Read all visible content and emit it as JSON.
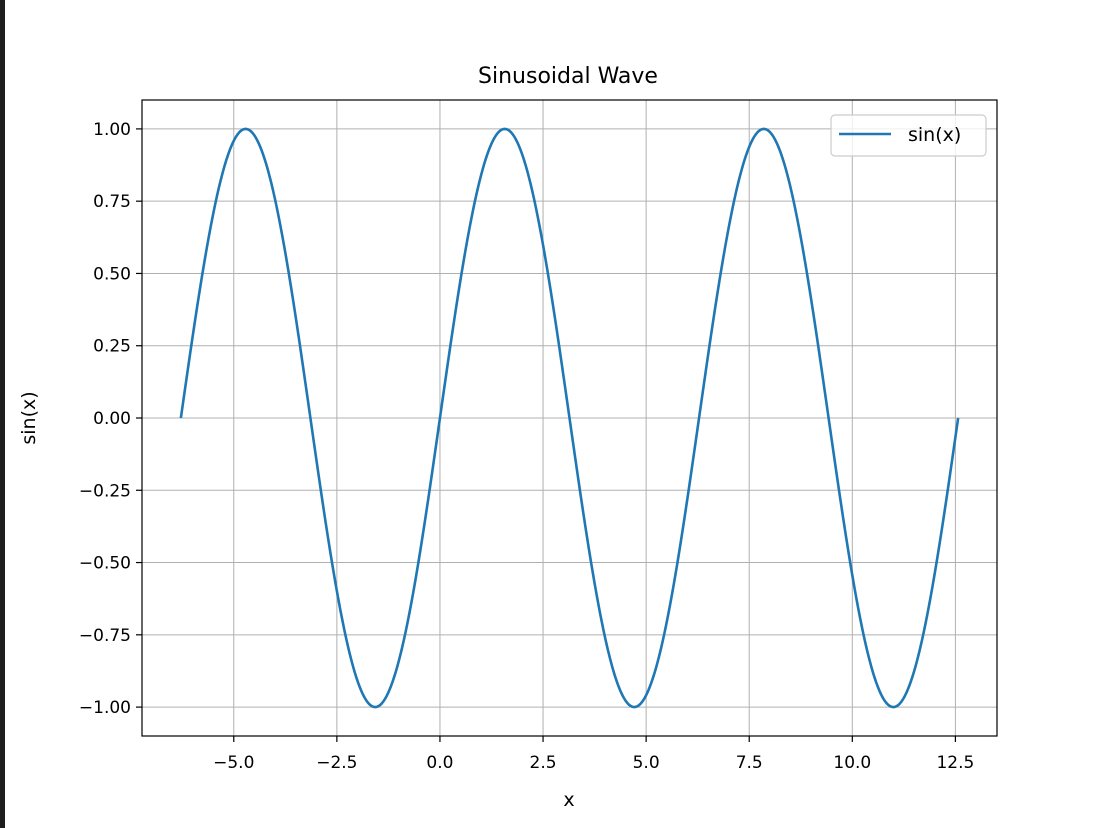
{
  "chart_data": {
    "type": "line",
    "title": "Sinusoidal Wave",
    "xlabel": "x",
    "ylabel": "sin(x)",
    "xlim": [
      -7.225663,
      13.508848
    ],
    "ylim": [
      -1.1,
      1.1
    ],
    "x_ticks": [
      -5.0,
      -2.5,
      0.0,
      2.5,
      5.0,
      7.5,
      10.0,
      12.5
    ],
    "x_tick_labels": [
      "−5.0",
      "−2.5",
      "0.0",
      "2.5",
      "5.0",
      "7.5",
      "10.0",
      "12.5"
    ],
    "y_ticks": [
      1.0,
      0.75,
      0.5,
      0.25,
      0.0,
      -0.25,
      -0.5,
      -0.75,
      -1.0
    ],
    "y_tick_labels": [
      "1.00",
      "0.75",
      "0.50",
      "0.25",
      "0.00",
      "−0.25",
      "−0.50",
      "−0.75",
      "−1.00"
    ],
    "grid": true,
    "legend_position": "top-right",
    "function": "sin(x)",
    "x_range": [
      -6.283185,
      12.566371
    ],
    "series": [
      {
        "name": "sin(x)",
        "color": "#1f77b4",
        "x": [
          -6.2832,
          -5.8905,
          -5.4978,
          -5.1051,
          -4.7124,
          -4.3197,
          -3.927,
          -3.5343,
          -3.1416,
          -2.7489,
          -2.3562,
          -1.9635,
          -1.5708,
          -1.1781,
          -0.7854,
          -0.3927,
          0.0,
          0.3927,
          0.7854,
          1.1781,
          1.5708,
          1.9635,
          2.3562,
          2.7489,
          3.1416,
          3.5343,
          3.927,
          4.3197,
          4.7124,
          5.1051,
          5.4978,
          5.8905,
          6.2832,
          6.6759,
          7.0686,
          7.4613,
          7.854,
          8.2467,
          8.6394,
          9.0321,
          9.4248,
          9.8175,
          10.2102,
          10.6029,
          10.9956,
          11.3883,
          11.781,
          12.1737,
          12.5664
        ],
        "y": [
          0.0,
          0.3827,
          0.7071,
          0.9239,
          1.0,
          0.9239,
          0.7071,
          0.3827,
          0.0,
          -0.3827,
          -0.7071,
          -0.9239,
          -1.0,
          -0.9239,
          -0.7071,
          -0.3827,
          0.0,
          0.3827,
          0.7071,
          0.9239,
          1.0,
          0.9239,
          0.7071,
          0.3827,
          0.0,
          -0.3827,
          -0.7071,
          -0.9239,
          -1.0,
          -0.9239,
          -0.7071,
          -0.3827,
          0.0,
          0.3827,
          0.7071,
          0.9239,
          1.0,
          0.9239,
          0.7071,
          0.3827,
          0.0,
          -0.3827,
          -0.7071,
          -0.9239,
          -1.0,
          -0.9239,
          -0.7071,
          -0.3827,
          0.0
        ]
      }
    ]
  }
}
